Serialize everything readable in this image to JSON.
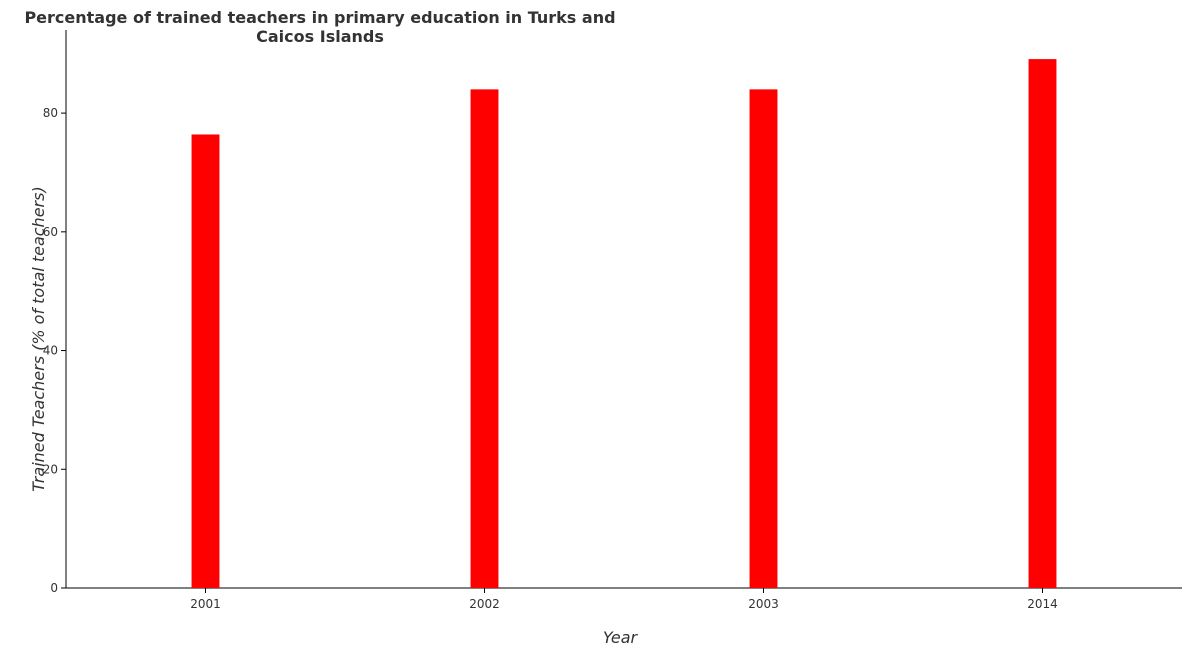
{
  "chart_data": {
    "type": "bar",
    "title": "Percentage of trained teachers in primary education in Turks and Caicos Islands",
    "xlabel": "Year",
    "ylabel": "Trained Teachers (% of total teachers)",
    "categories": [
      "2001",
      "2002",
      "2003",
      "2014"
    ],
    "values": [
      76.4,
      84.0,
      84.0,
      89.1
    ],
    "ylim": [
      0,
      94
    ],
    "yticks": [
      0,
      20,
      40,
      60,
      80
    ],
    "grid": false,
    "legend": "none",
    "bar_color": "#ff0000"
  }
}
